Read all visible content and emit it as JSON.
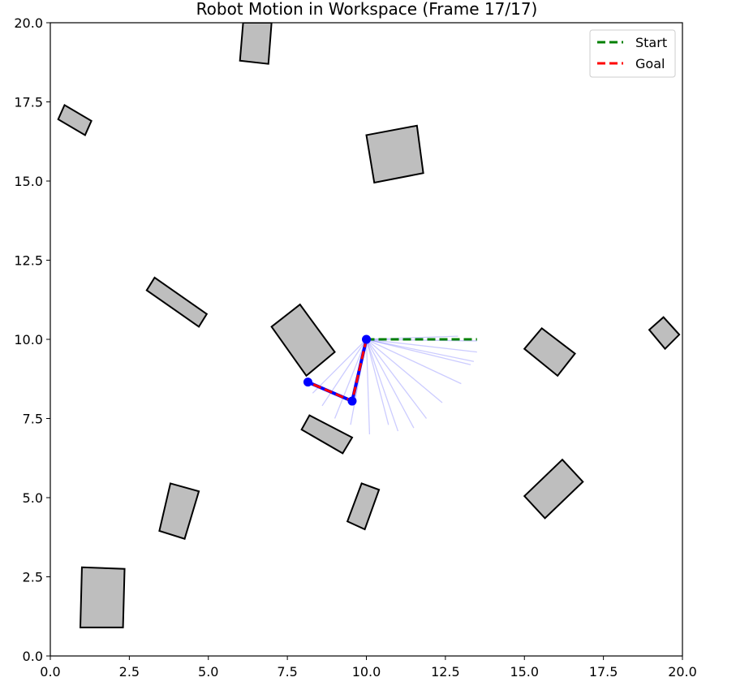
{
  "chart_data": {
    "type": "scatter",
    "title": "Robot Motion in Workspace (Frame 17/17)",
    "xlabel": "",
    "ylabel": "",
    "xlim": [
      0,
      20
    ],
    "ylim": [
      0,
      20
    ],
    "xticks": [
      "0.0",
      "2.5",
      "5.0",
      "7.5",
      "10.0",
      "12.5",
      "15.0",
      "17.5",
      "20.0"
    ],
    "yticks": [
      "0.0",
      "2.5",
      "5.0",
      "7.5",
      "10.0",
      "12.5",
      "15.0",
      "17.5",
      "20.0"
    ],
    "tick_values": [
      0,
      2.5,
      5,
      7.5,
      10,
      12.5,
      15,
      17.5,
      20
    ],
    "grid": false,
    "legend": {
      "placement": "top-right",
      "entries": [
        {
          "label": "Start",
          "color": "#008000",
          "style": "dashed"
        },
        {
          "label": "Goal",
          "color": "#ff0000",
          "style": "dashed"
        }
      ]
    },
    "obstacles": [
      {
        "corners": [
          [
            6.0,
            18.8
          ],
          [
            6.9,
            18.7
          ],
          [
            7.0,
            20.0
          ],
          [
            6.1,
            20.0
          ]
        ]
      },
      {
        "corners": [
          [
            0.25,
            16.95
          ],
          [
            0.45,
            17.4
          ],
          [
            1.3,
            16.9
          ],
          [
            1.1,
            16.45
          ]
        ]
      },
      {
        "corners": [
          [
            10.0,
            16.45
          ],
          [
            11.6,
            16.75
          ],
          [
            11.8,
            15.25
          ],
          [
            10.25,
            14.95
          ]
        ]
      },
      {
        "corners": [
          [
            3.05,
            11.55
          ],
          [
            3.3,
            11.95
          ],
          [
            4.95,
            10.8
          ],
          [
            4.7,
            10.4
          ]
        ]
      },
      {
        "corners": [
          [
            7.0,
            10.4
          ],
          [
            7.9,
            11.1
          ],
          [
            9.0,
            9.6
          ],
          [
            8.1,
            8.85
          ]
        ]
      },
      {
        "corners": [
          [
            15.0,
            9.7
          ],
          [
            15.55,
            10.35
          ],
          [
            16.6,
            9.55
          ],
          [
            16.05,
            8.85
          ]
        ]
      },
      {
        "corners": [
          [
            18.95,
            10.3
          ],
          [
            19.4,
            10.7
          ],
          [
            19.9,
            10.15
          ],
          [
            19.45,
            9.7
          ]
        ]
      },
      {
        "corners": [
          [
            7.95,
            7.15
          ],
          [
            8.2,
            7.6
          ],
          [
            9.55,
            6.9
          ],
          [
            9.25,
            6.4
          ]
        ]
      },
      {
        "corners": [
          [
            3.45,
            3.95
          ],
          [
            3.8,
            5.45
          ],
          [
            4.7,
            5.2
          ],
          [
            4.25,
            3.7
          ]
        ]
      },
      {
        "corners": [
          [
            9.4,
            4.25
          ],
          [
            9.85,
            5.45
          ],
          [
            10.4,
            5.25
          ],
          [
            9.95,
            4.0
          ]
        ]
      },
      {
        "corners": [
          [
            15.0,
            5.05
          ],
          [
            16.2,
            6.2
          ],
          [
            16.85,
            5.5
          ],
          [
            15.65,
            4.35
          ]
        ]
      },
      {
        "corners": [
          [
            0.95,
            0.9
          ],
          [
            1.0,
            2.8
          ],
          [
            2.35,
            2.75
          ],
          [
            2.3,
            0.9
          ]
        ]
      }
    ],
    "trail_base": [
      10.0,
      10.0
    ],
    "trail_segments": [
      [
        [
          10.0,
          10.0
        ],
        [
          13.5,
          9.95
        ]
      ],
      [
        [
          10.0,
          10.0
        ],
        [
          12.9,
          10.1
        ]
      ],
      [
        [
          10.0,
          10.0
        ],
        [
          13.5,
          9.6
        ]
      ],
      [
        [
          10.0,
          10.0
        ],
        [
          13.3,
          9.2
        ]
      ],
      [
        [
          10.0,
          10.0
        ],
        [
          13.4,
          9.3
        ]
      ],
      [
        [
          10.0,
          10.0
        ],
        [
          13.0,
          8.6
        ]
      ],
      [
        [
          10.0,
          10.0
        ],
        [
          12.4,
          8.0
        ]
      ],
      [
        [
          10.0,
          10.0
        ],
        [
          11.9,
          7.5
        ]
      ],
      [
        [
          10.0,
          10.0
        ],
        [
          11.5,
          7.2
        ]
      ],
      [
        [
          10.0,
          10.0
        ],
        [
          11.0,
          7.1
        ]
      ],
      [
        [
          10.0,
          10.0
        ],
        [
          10.7,
          7.3
        ]
      ],
      [
        [
          10.0,
          10.0
        ],
        [
          10.1,
          7.0
        ]
      ],
      [
        [
          10.0,
          10.0
        ],
        [
          9.5,
          7.3
        ]
      ],
      [
        [
          10.0,
          10.0
        ],
        [
          9.0,
          7.5
        ]
      ],
      [
        [
          10.0,
          10.0
        ],
        [
          8.6,
          7.9
        ]
      ],
      [
        [
          10.0,
          10.0
        ],
        [
          8.3,
          8.3
        ]
      ]
    ],
    "series": [
      {
        "name": "Start",
        "color": "#008000",
        "points": [
          [
            10.0,
            10.0
          ],
          [
            11.75,
            10.0
          ],
          [
            13.5,
            10.0
          ]
        ]
      },
      {
        "name": "Goal",
        "color": "#ff0000",
        "points": [
          [
            10.0,
            10.0
          ],
          [
            9.55,
            8.05
          ],
          [
            8.15,
            8.65
          ]
        ]
      }
    ],
    "current_arm": {
      "color": "#0000ff",
      "points": [
        [
          10.0,
          10.0
        ],
        [
          9.55,
          8.05
        ],
        [
          8.15,
          8.65
        ]
      ]
    }
  }
}
